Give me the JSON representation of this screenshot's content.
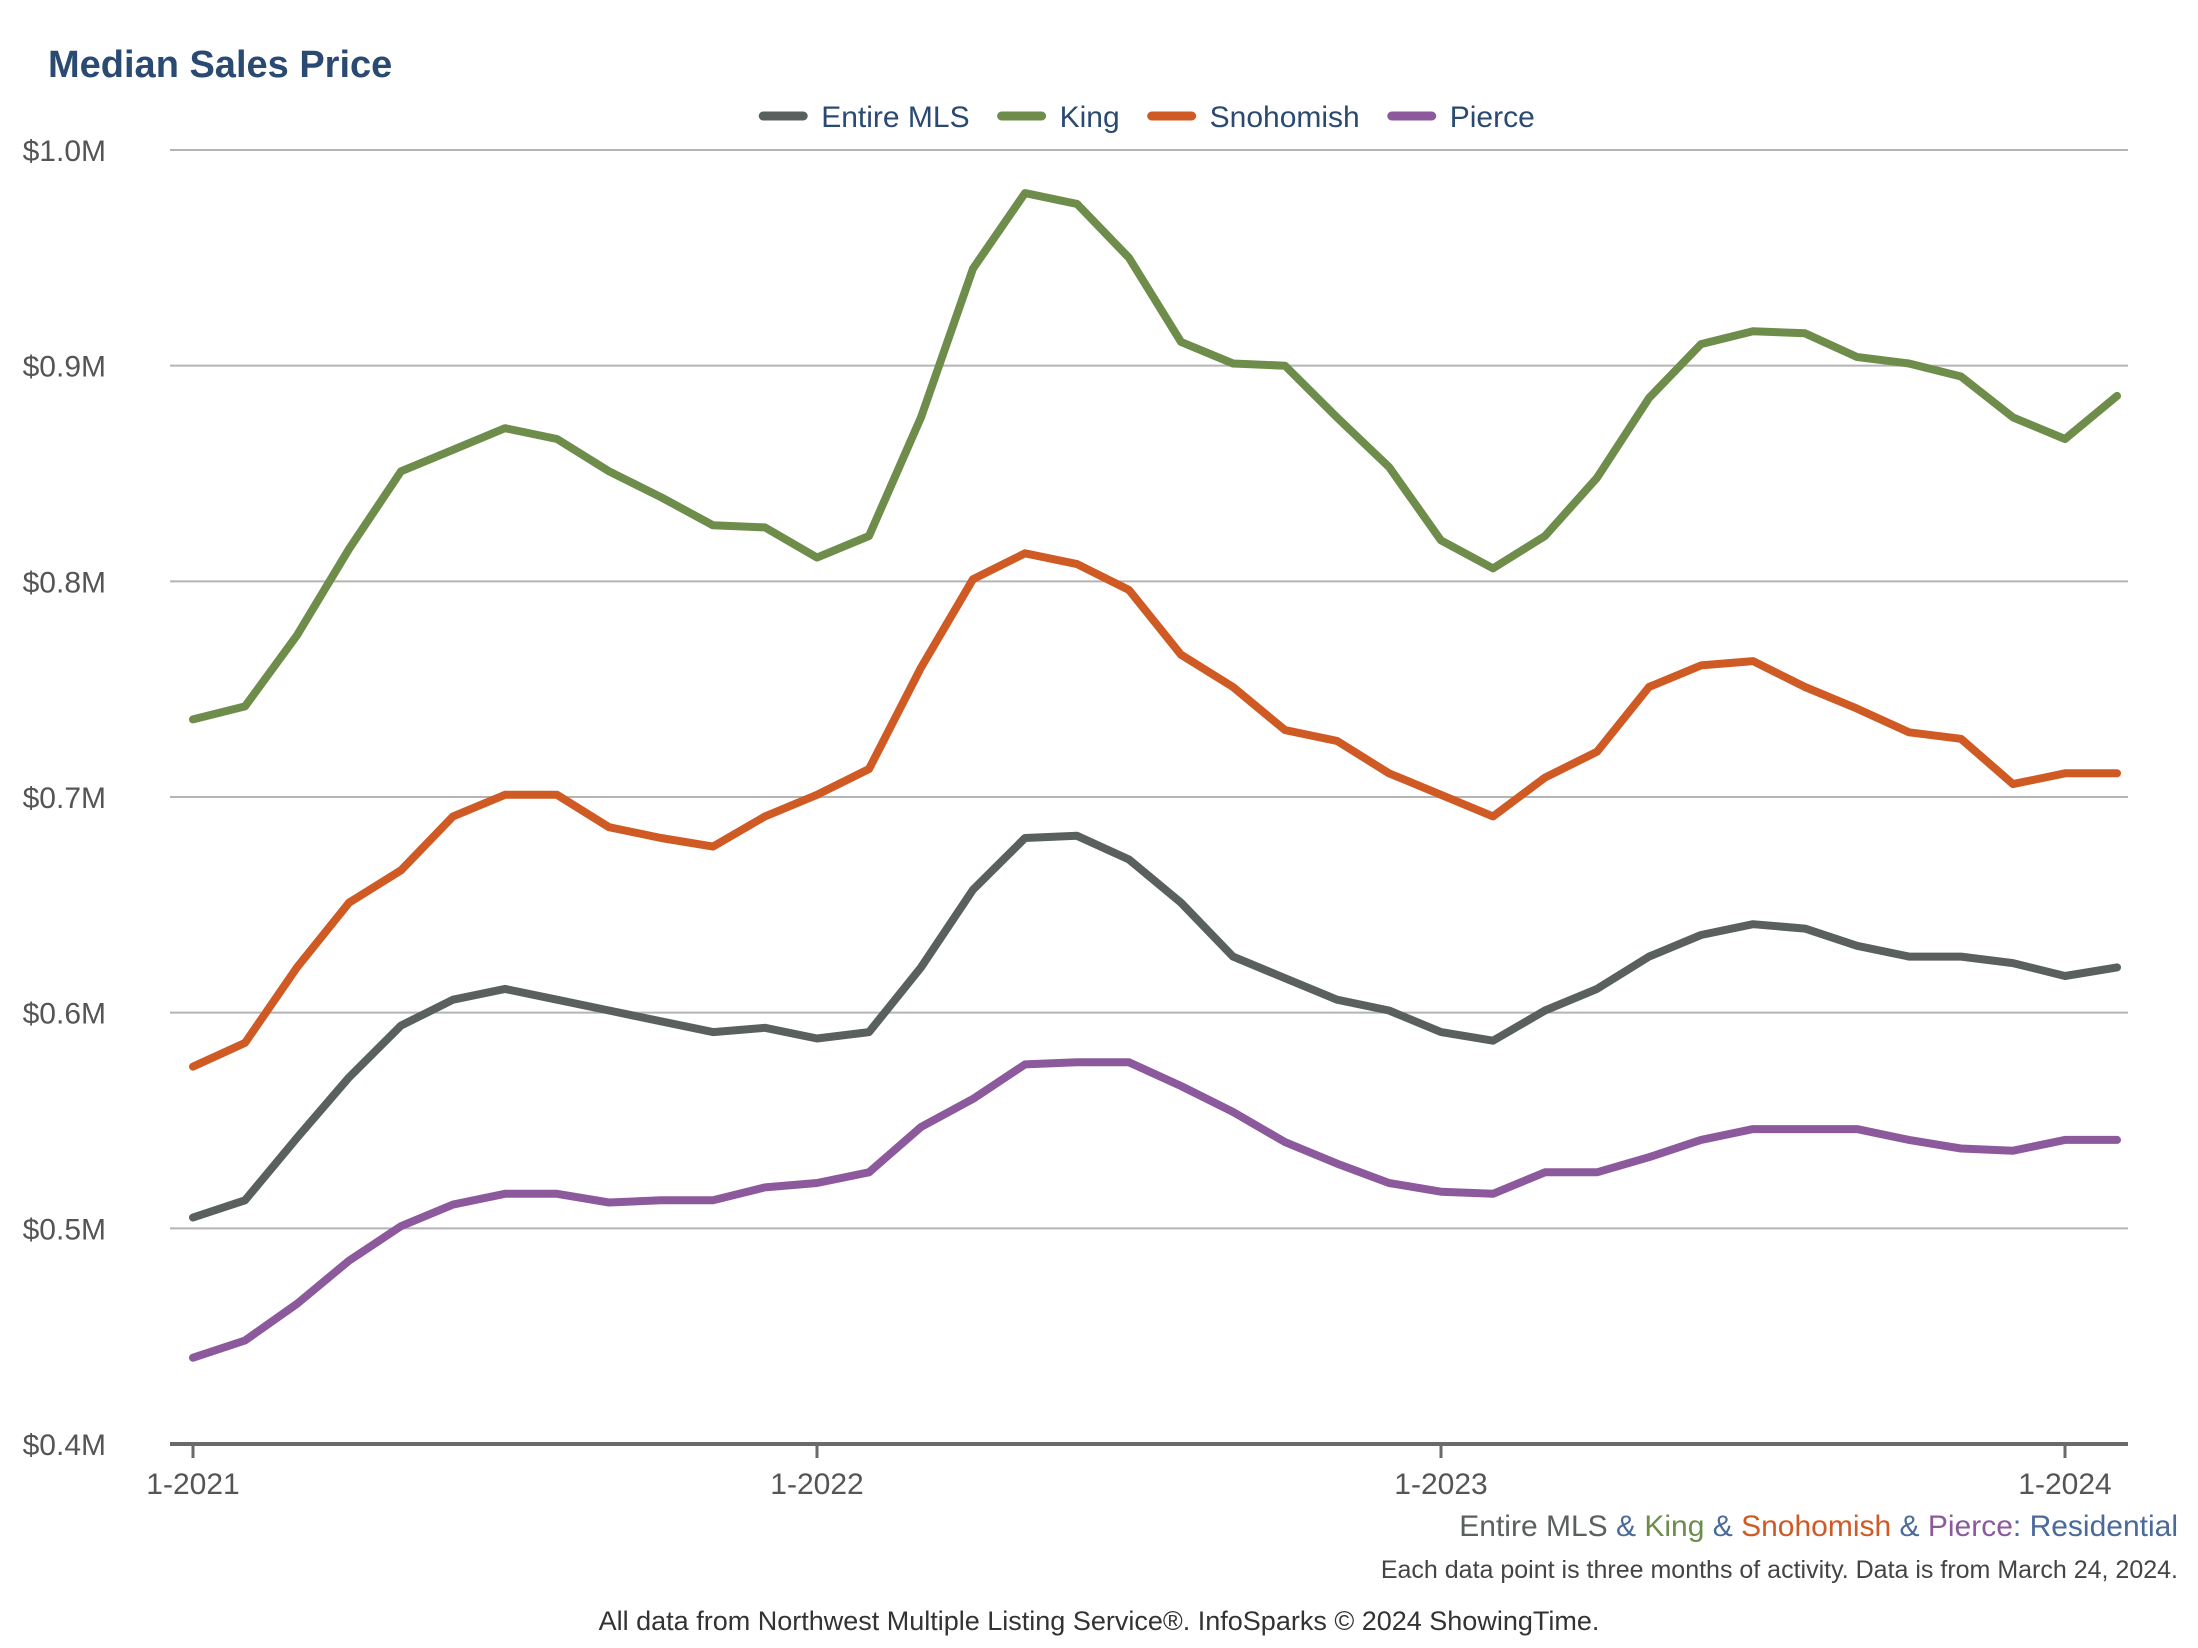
{
  "chart_data": {
    "type": "line",
    "title": "Median Sales Price",
    "x": [
      "1-2021",
      "2-2021",
      "3-2021",
      "4-2021",
      "5-2021",
      "6-2021",
      "7-2021",
      "8-2021",
      "9-2021",
      "10-2021",
      "11-2021",
      "12-2021",
      "1-2022",
      "2-2022",
      "3-2022",
      "4-2022",
      "5-2022",
      "6-2022",
      "7-2022",
      "8-2022",
      "9-2022",
      "10-2022",
      "11-2022",
      "12-2022",
      "1-2023",
      "2-2023",
      "3-2023",
      "4-2023",
      "5-2023",
      "6-2023",
      "7-2023",
      "8-2023",
      "9-2023",
      "10-2023",
      "11-2023",
      "12-2023",
      "1-2024",
      "2-2024"
    ],
    "series": [
      {
        "name": "Entire MLS",
        "color": "#5a605e",
        "values": [
          505000,
          513000,
          542000,
          570000,
          594000,
          606000,
          611000,
          606000,
          601000,
          596000,
          591000,
          593000,
          588000,
          591000,
          621000,
          657000,
          681000,
          682000,
          671000,
          651000,
          626000,
          616000,
          606000,
          601000,
          591000,
          587000,
          601000,
          611000,
          626000,
          636000,
          641000,
          639000,
          631000,
          626000,
          626000,
          623000,
          617000,
          621000
        ]
      },
      {
        "name": "King",
        "color": "#6e8c4a",
        "values": [
          736000,
          742000,
          775000,
          815000,
          851000,
          861000,
          871000,
          866000,
          851000,
          839000,
          826000,
          825000,
          811000,
          821000,
          876000,
          945000,
          980000,
          975000,
          950000,
          911000,
          901000,
          900000,
          876000,
          853000,
          819000,
          806000,
          821000,
          848000,
          885000,
          910000,
          916000,
          915000,
          904000,
          901000,
          895000,
          876000,
          866000,
          886000
        ]
      },
      {
        "name": "Snohomish",
        "color": "#d05a24",
        "values": [
          575000,
          586000,
          621000,
          651000,
          666000,
          691000,
          701000,
          701000,
          686000,
          681000,
          677000,
          691000,
          701000,
          713000,
          760000,
          801000,
          813000,
          808000,
          796000,
          766000,
          751000,
          731000,
          726000,
          711000,
          701000,
          691000,
          709000,
          721000,
          751000,
          761000,
          763000,
          751000,
          741000,
          730000,
          727000,
          706000,
          711000,
          711000
        ]
      },
      {
        "name": "Pierce",
        "color": "#8c5a9c",
        "values": [
          440000,
          448000,
          465000,
          485000,
          501000,
          511000,
          516000,
          516000,
          512000,
          513000,
          513000,
          519000,
          521000,
          526000,
          547000,
          560000,
          576000,
          577000,
          577000,
          566000,
          554000,
          540000,
          530000,
          521000,
          517000,
          516000,
          526000,
          526000,
          533000,
          541000,
          546000,
          546000,
          546000,
          541000,
          537000,
          536000,
          541000,
          541000
        ]
      }
    ],
    "xlabel": "",
    "ylabel": "",
    "ylim": [
      400000,
      1000000
    ],
    "yticks": [
      {
        "value": 1000000,
        "label": "$1.0M"
      },
      {
        "value": 900000,
        "label": "$0.9M"
      },
      {
        "value": 800000,
        "label": "$0.8M"
      },
      {
        "value": 700000,
        "label": "$0.7M"
      },
      {
        "value": 600000,
        "label": "$0.6M"
      },
      {
        "value": 500000,
        "label": "$0.5M"
      },
      {
        "value": 400000,
        "label": "$0.4M"
      }
    ],
    "xticks": [
      {
        "index": 0,
        "label": "1-2021"
      },
      {
        "index": 12,
        "label": "1-2022"
      },
      {
        "index": 24,
        "label": "1-2023"
      },
      {
        "index": 36,
        "label": "1-2024"
      }
    ],
    "legend_position": "top-center",
    "grid": true
  },
  "footer": {
    "subtitle_parts": [
      {
        "text": "Entire MLS",
        "color": "#5a605e"
      },
      {
        "text": " & ",
        "color": "#4a6a9a"
      },
      {
        "text": "King",
        "color": "#6e8c4a"
      },
      {
        "text": " & ",
        "color": "#4a6a9a"
      },
      {
        "text": "Snohomish",
        "color": "#d05a24"
      },
      {
        "text": " & ",
        "color": "#4a6a9a"
      },
      {
        "text": "Pierce",
        "color": "#8c5a9c"
      },
      {
        "text": ": Residential",
        "color": "#4a6a9a"
      }
    ],
    "note": "Each data point is three months of activity. Data is from March 24, 2024.",
    "credit": "All data from Northwest Multiple Listing Service®. InfoSparks © 2024 ShowingTime."
  },
  "colors": {
    "title": "#2b4a72",
    "legend_text": "#2b4a72",
    "tick_text": "#555555",
    "grid": "#b4b4b4",
    "axis": "#6a6a6a",
    "footer_text": "#444444"
  }
}
